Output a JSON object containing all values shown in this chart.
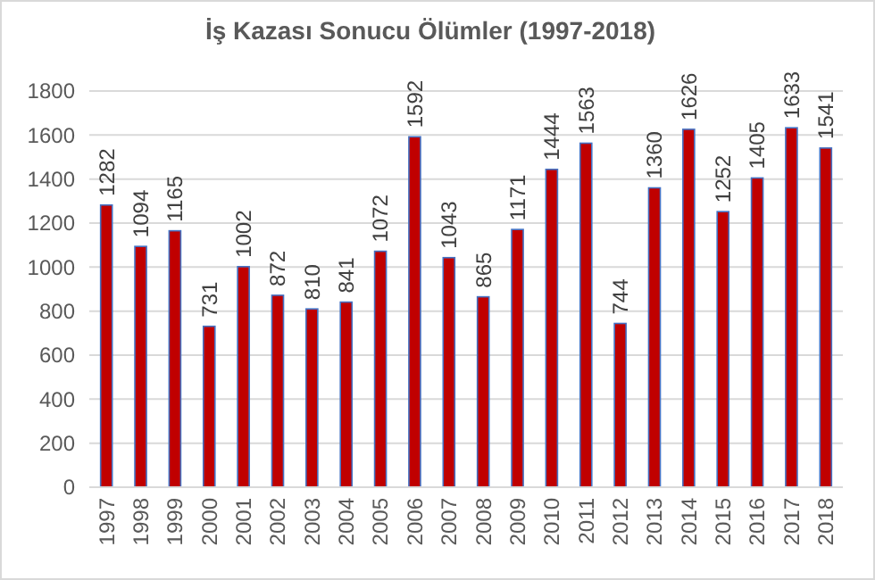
{
  "chart_data": {
    "type": "bar",
    "title": "İş Kazası Sonucu Ölümler (1997-2018)",
    "categories": [
      "1997",
      "1998",
      "1999",
      "2000",
      "2001",
      "2002",
      "2003",
      "2004",
      "2005",
      "2006",
      "2007",
      "2008",
      "2009",
      "2010",
      "2011",
      "2012",
      "2013",
      "2014",
      "2015",
      "2016",
      "2017",
      "2018"
    ],
    "values": [
      1282,
      1094,
      1165,
      731,
      1002,
      872,
      810,
      841,
      1072,
      1592,
      1043,
      865,
      1171,
      1444,
      1563,
      744,
      1360,
      1626,
      1252,
      1405,
      1633,
      1541
    ],
    "color": "#c00000",
    "ylim": [
      0,
      1800
    ],
    "yticks": [
      0,
      200,
      400,
      600,
      800,
      1000,
      1200,
      1400,
      1600,
      1800
    ],
    "grid": "y",
    "data_labels": true
  }
}
